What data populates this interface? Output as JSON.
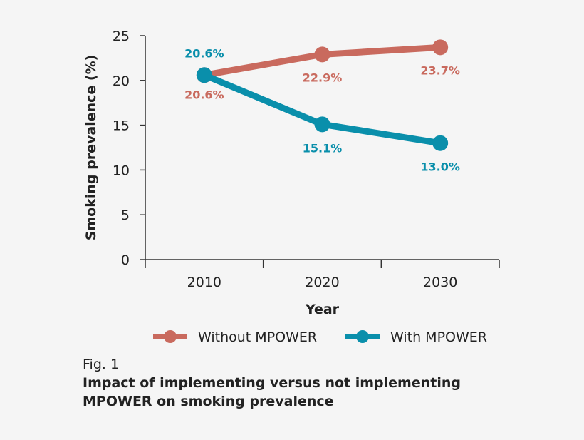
{
  "chart_data": {
    "type": "line",
    "categories": [
      "2010",
      "2020",
      "2030"
    ],
    "series": [
      {
        "name": "Without MPOWER",
        "values": [
          20.6,
          22.9,
          23.7
        ],
        "labels": [
          "20.6%",
          "22.9%",
          "23.7%"
        ],
        "color": "#c96a5e"
      },
      {
        "name": "With MPOWER",
        "values": [
          20.6,
          15.1,
          13.0
        ],
        "labels": [
          "20.6%",
          "15.1%",
          "13.0%"
        ],
        "color": "#0a8fab"
      }
    ],
    "xlabel": "Year",
    "ylabel": "Smoking prevalence (%)",
    "ylim": [
      0,
      25
    ],
    "yticks": [
      0,
      5,
      10,
      15,
      20,
      25
    ],
    "grid": false,
    "legend": "bottom"
  },
  "caption": {
    "fig": "Fig. 1",
    "title": "Impact of implementing versus not implementing MPOWER on smoking prevalence"
  }
}
